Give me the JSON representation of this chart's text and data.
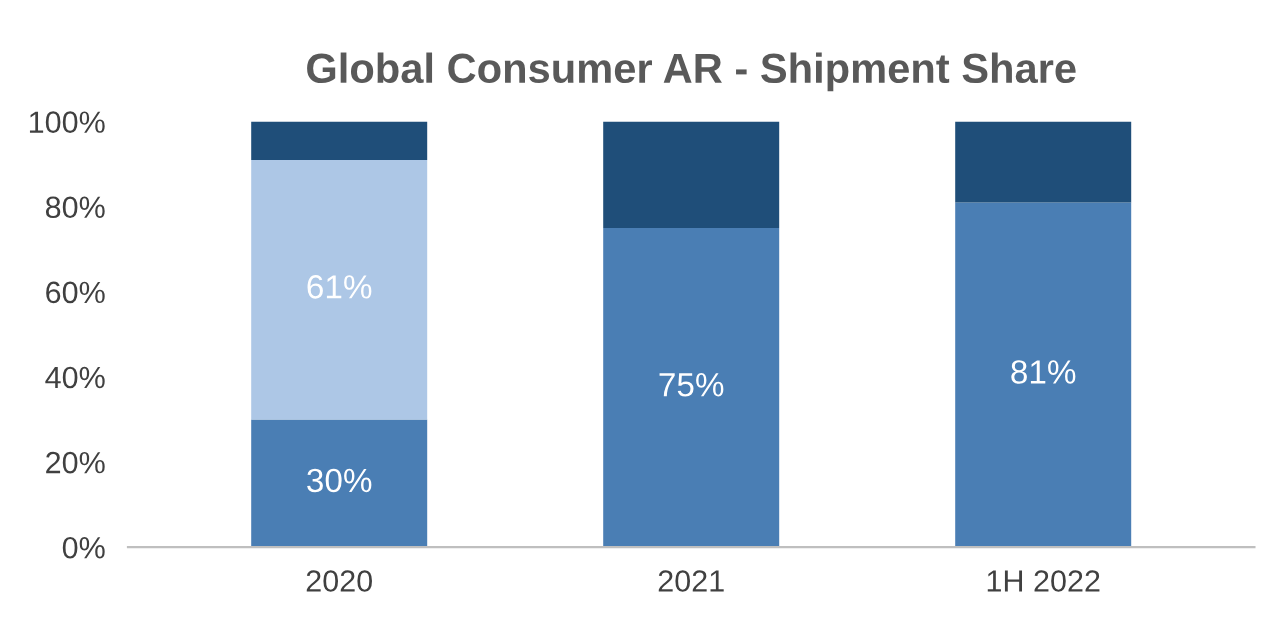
{
  "chart_data": {
    "type": "bar",
    "title": "Global Consumer AR - Shipment Share",
    "stacked": true,
    "categories": [
      "2020",
      "2021",
      "1H 2022"
    ],
    "series": [
      {
        "color": "#4a7eb4",
        "values": [
          30,
          75,
          81
        ],
        "value_labels": [
          "30%",
          "75%",
          "81%"
        ]
      },
      {
        "color": "#adc7e6",
        "values": [
          61,
          null,
          null
        ],
        "value_labels": [
          "61%",
          null,
          null
        ]
      },
      {
        "color": "#1f4e79",
        "values": [
          9,
          25,
          19
        ]
      }
    ],
    "ylim": [
      0,
      100
    ],
    "yticks": [
      {
        "value": 0,
        "label": "0%"
      },
      {
        "value": 20,
        "label": "20%"
      },
      {
        "value": 40,
        "label": "40%"
      },
      {
        "value": 60,
        "label": "60%"
      },
      {
        "value": 80,
        "label": "80%"
      },
      {
        "value": 100,
        "label": "100%"
      }
    ],
    "grid": false
  }
}
